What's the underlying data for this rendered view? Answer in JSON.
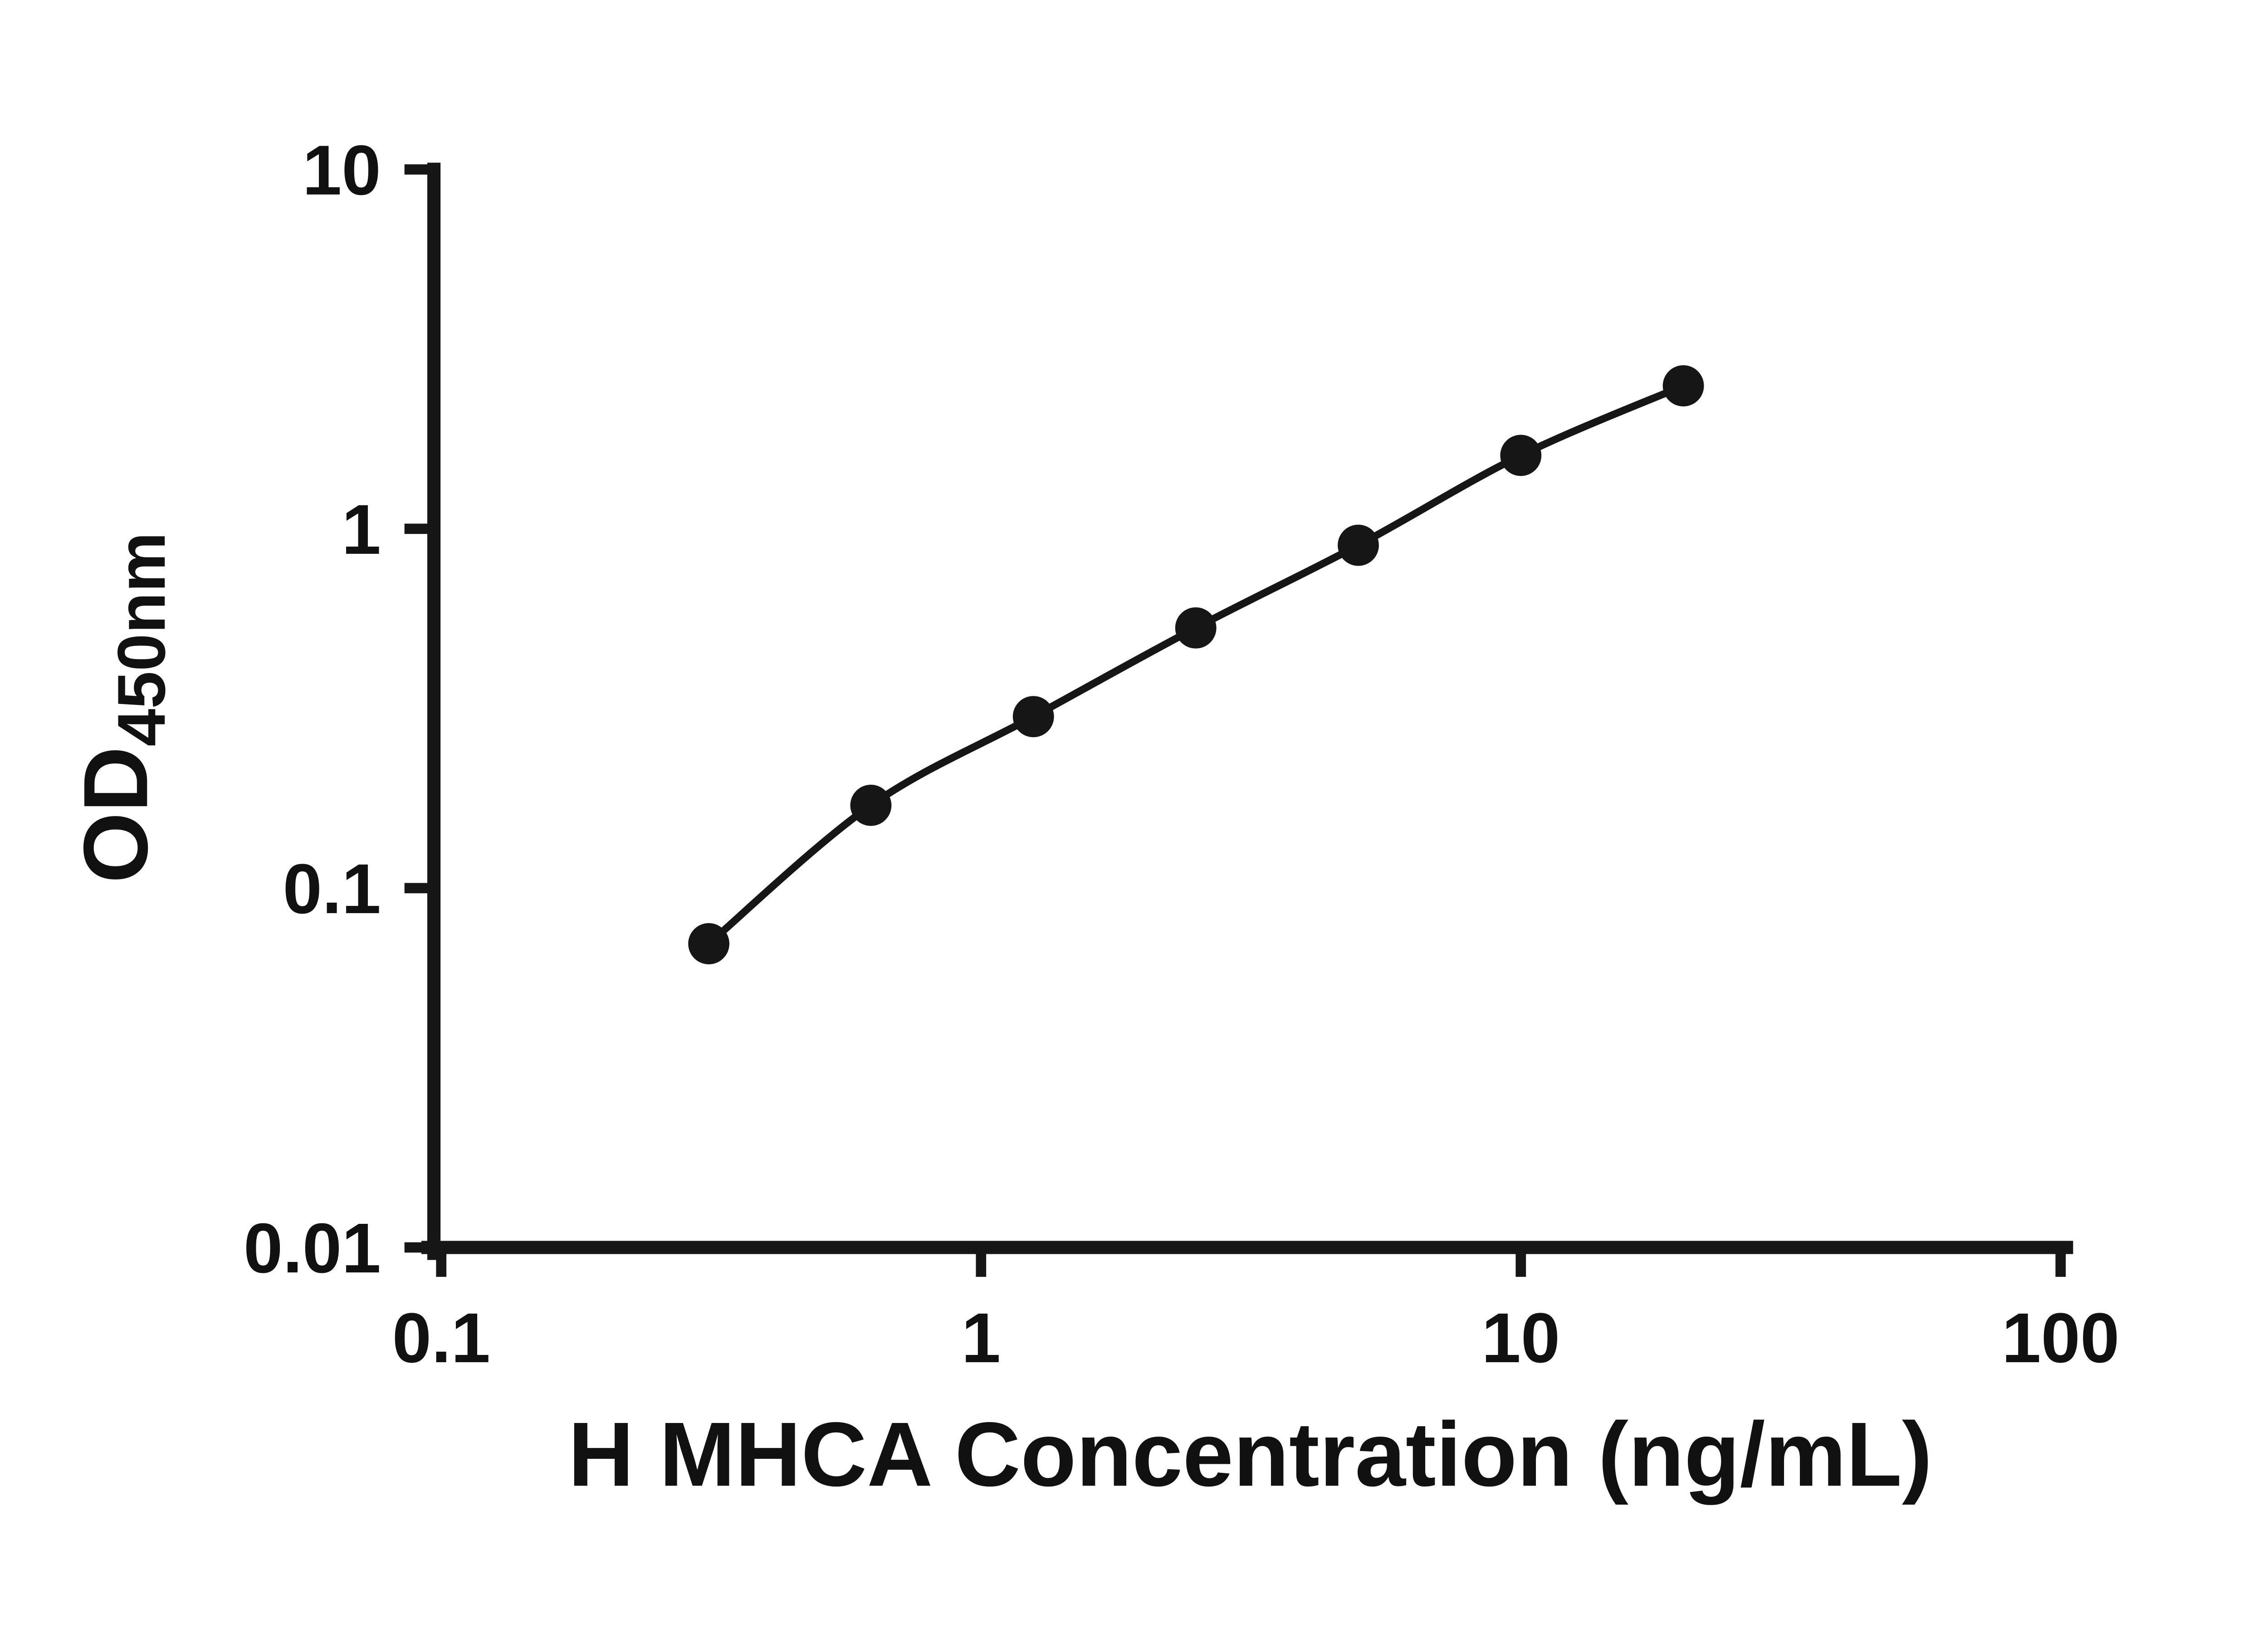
{
  "chart_data": {
    "type": "scatter",
    "title": "",
    "xlabel": "H MHCA Concentration (ng/mL)",
    "ylabel_main": "OD",
    "ylabel_sub": "450nm",
    "x_scale": "log",
    "y_scale": "log",
    "xlim": [
      0.1,
      100
    ],
    "ylim": [
      0.01,
      10
    ],
    "x_ticks": [
      0.1,
      1,
      10,
      100
    ],
    "x_tick_labels": [
      "0.1",
      "1",
      "10",
      "100"
    ],
    "y_ticks": [
      0.01,
      0.1,
      1,
      10
    ],
    "y_tick_labels": [
      "0.01",
      "0.1",
      "1",
      "10"
    ],
    "grid": false,
    "legend": null,
    "marker_color": "#161616",
    "line_color": "#161616",
    "points": [
      {
        "x": 0.313,
        "y": 0.07
      },
      {
        "x": 0.625,
        "y": 0.17
      },
      {
        "x": 1.25,
        "y": 0.3
      },
      {
        "x": 2.5,
        "y": 0.53
      },
      {
        "x": 5,
        "y": 0.9
      },
      {
        "x": 10,
        "y": 1.6
      },
      {
        "x": 20,
        "y": 2.5
      }
    ]
  }
}
